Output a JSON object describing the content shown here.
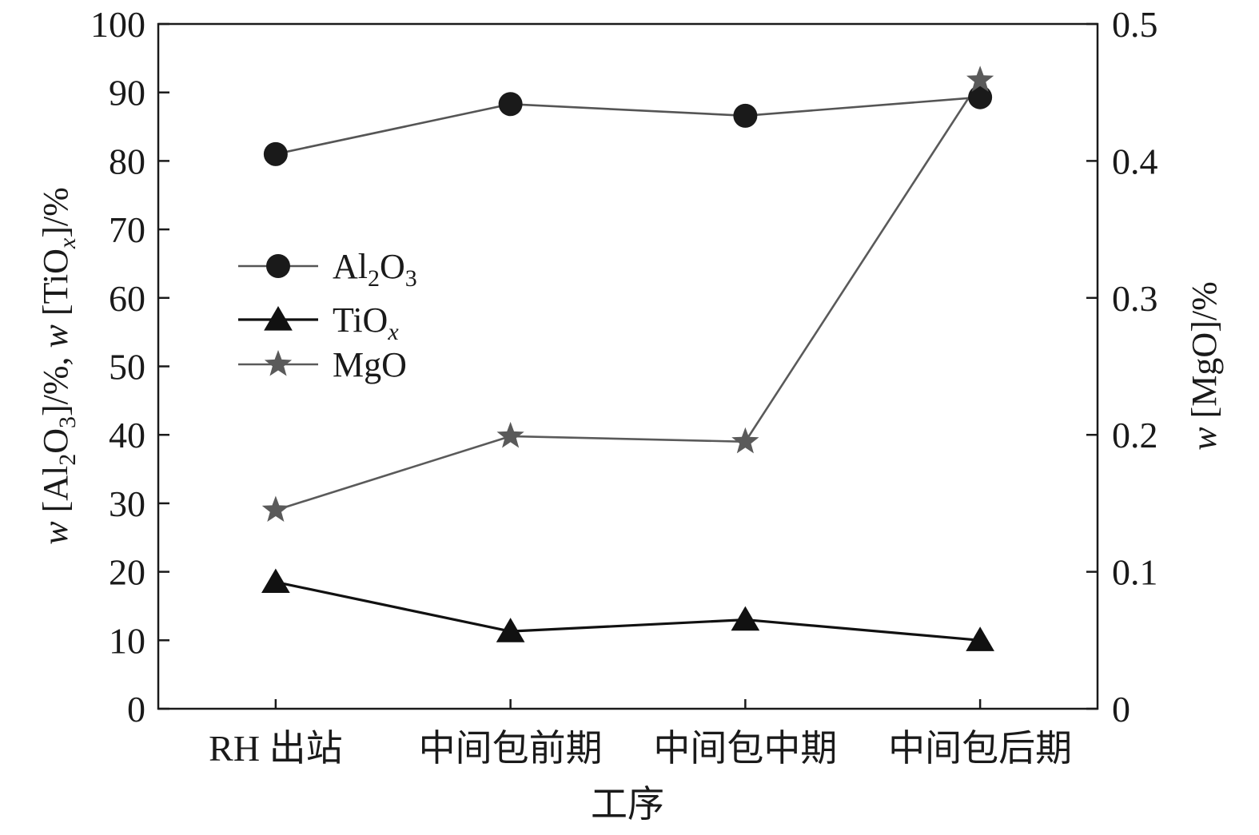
{
  "chart_data": {
    "type": "line",
    "categories": [
      "RH 出站",
      "中间包前期",
      "中间包中期",
      "中间包后期"
    ],
    "xlabel": "工序",
    "y_left": {
      "label": "w [Al2O3]/%, w [TiOx]/%",
      "ylim": [
        0,
        100
      ],
      "ticks": [
        0,
        10,
        20,
        30,
        40,
        50,
        60,
        70,
        80,
        90,
        100
      ]
    },
    "y_right": {
      "label": "w [MgO]/%",
      "ylim": [
        0,
        0.5
      ],
      "ticks": [
        "0",
        "0.1",
        "0.2",
        "0.3",
        "0.4",
        "0.5"
      ]
    },
    "series": [
      {
        "name": "Al2O3",
        "axis": "left",
        "marker": "circle",
        "color": "#1a1a1a",
        "line_color": "#555555",
        "values": [
          81.0,
          88.3,
          86.6,
          89.3
        ]
      },
      {
        "name": "TiOx",
        "axis": "left",
        "marker": "triangle",
        "color": "#111111",
        "line_color": "#111111",
        "values": [
          18.5,
          11.3,
          13.0,
          10.0
        ]
      },
      {
        "name": "MgO",
        "axis": "right",
        "marker": "star",
        "color": "#5a5a5a",
        "line_color": "#5a5a5a",
        "values": [
          0.145,
          0.199,
          0.195,
          0.459
        ]
      }
    ],
    "legend": {
      "position": "upper-left",
      "entries": [
        {
          "base": "Al",
          "sub1": "2",
          "mid": "O",
          "sub2": "3",
          "marker": "circle"
        },
        {
          "base": "TiO",
          "sub1": "x",
          "marker": "triangle"
        },
        {
          "base": "MgO",
          "marker": "star"
        }
      ]
    },
    "grid": false
  }
}
